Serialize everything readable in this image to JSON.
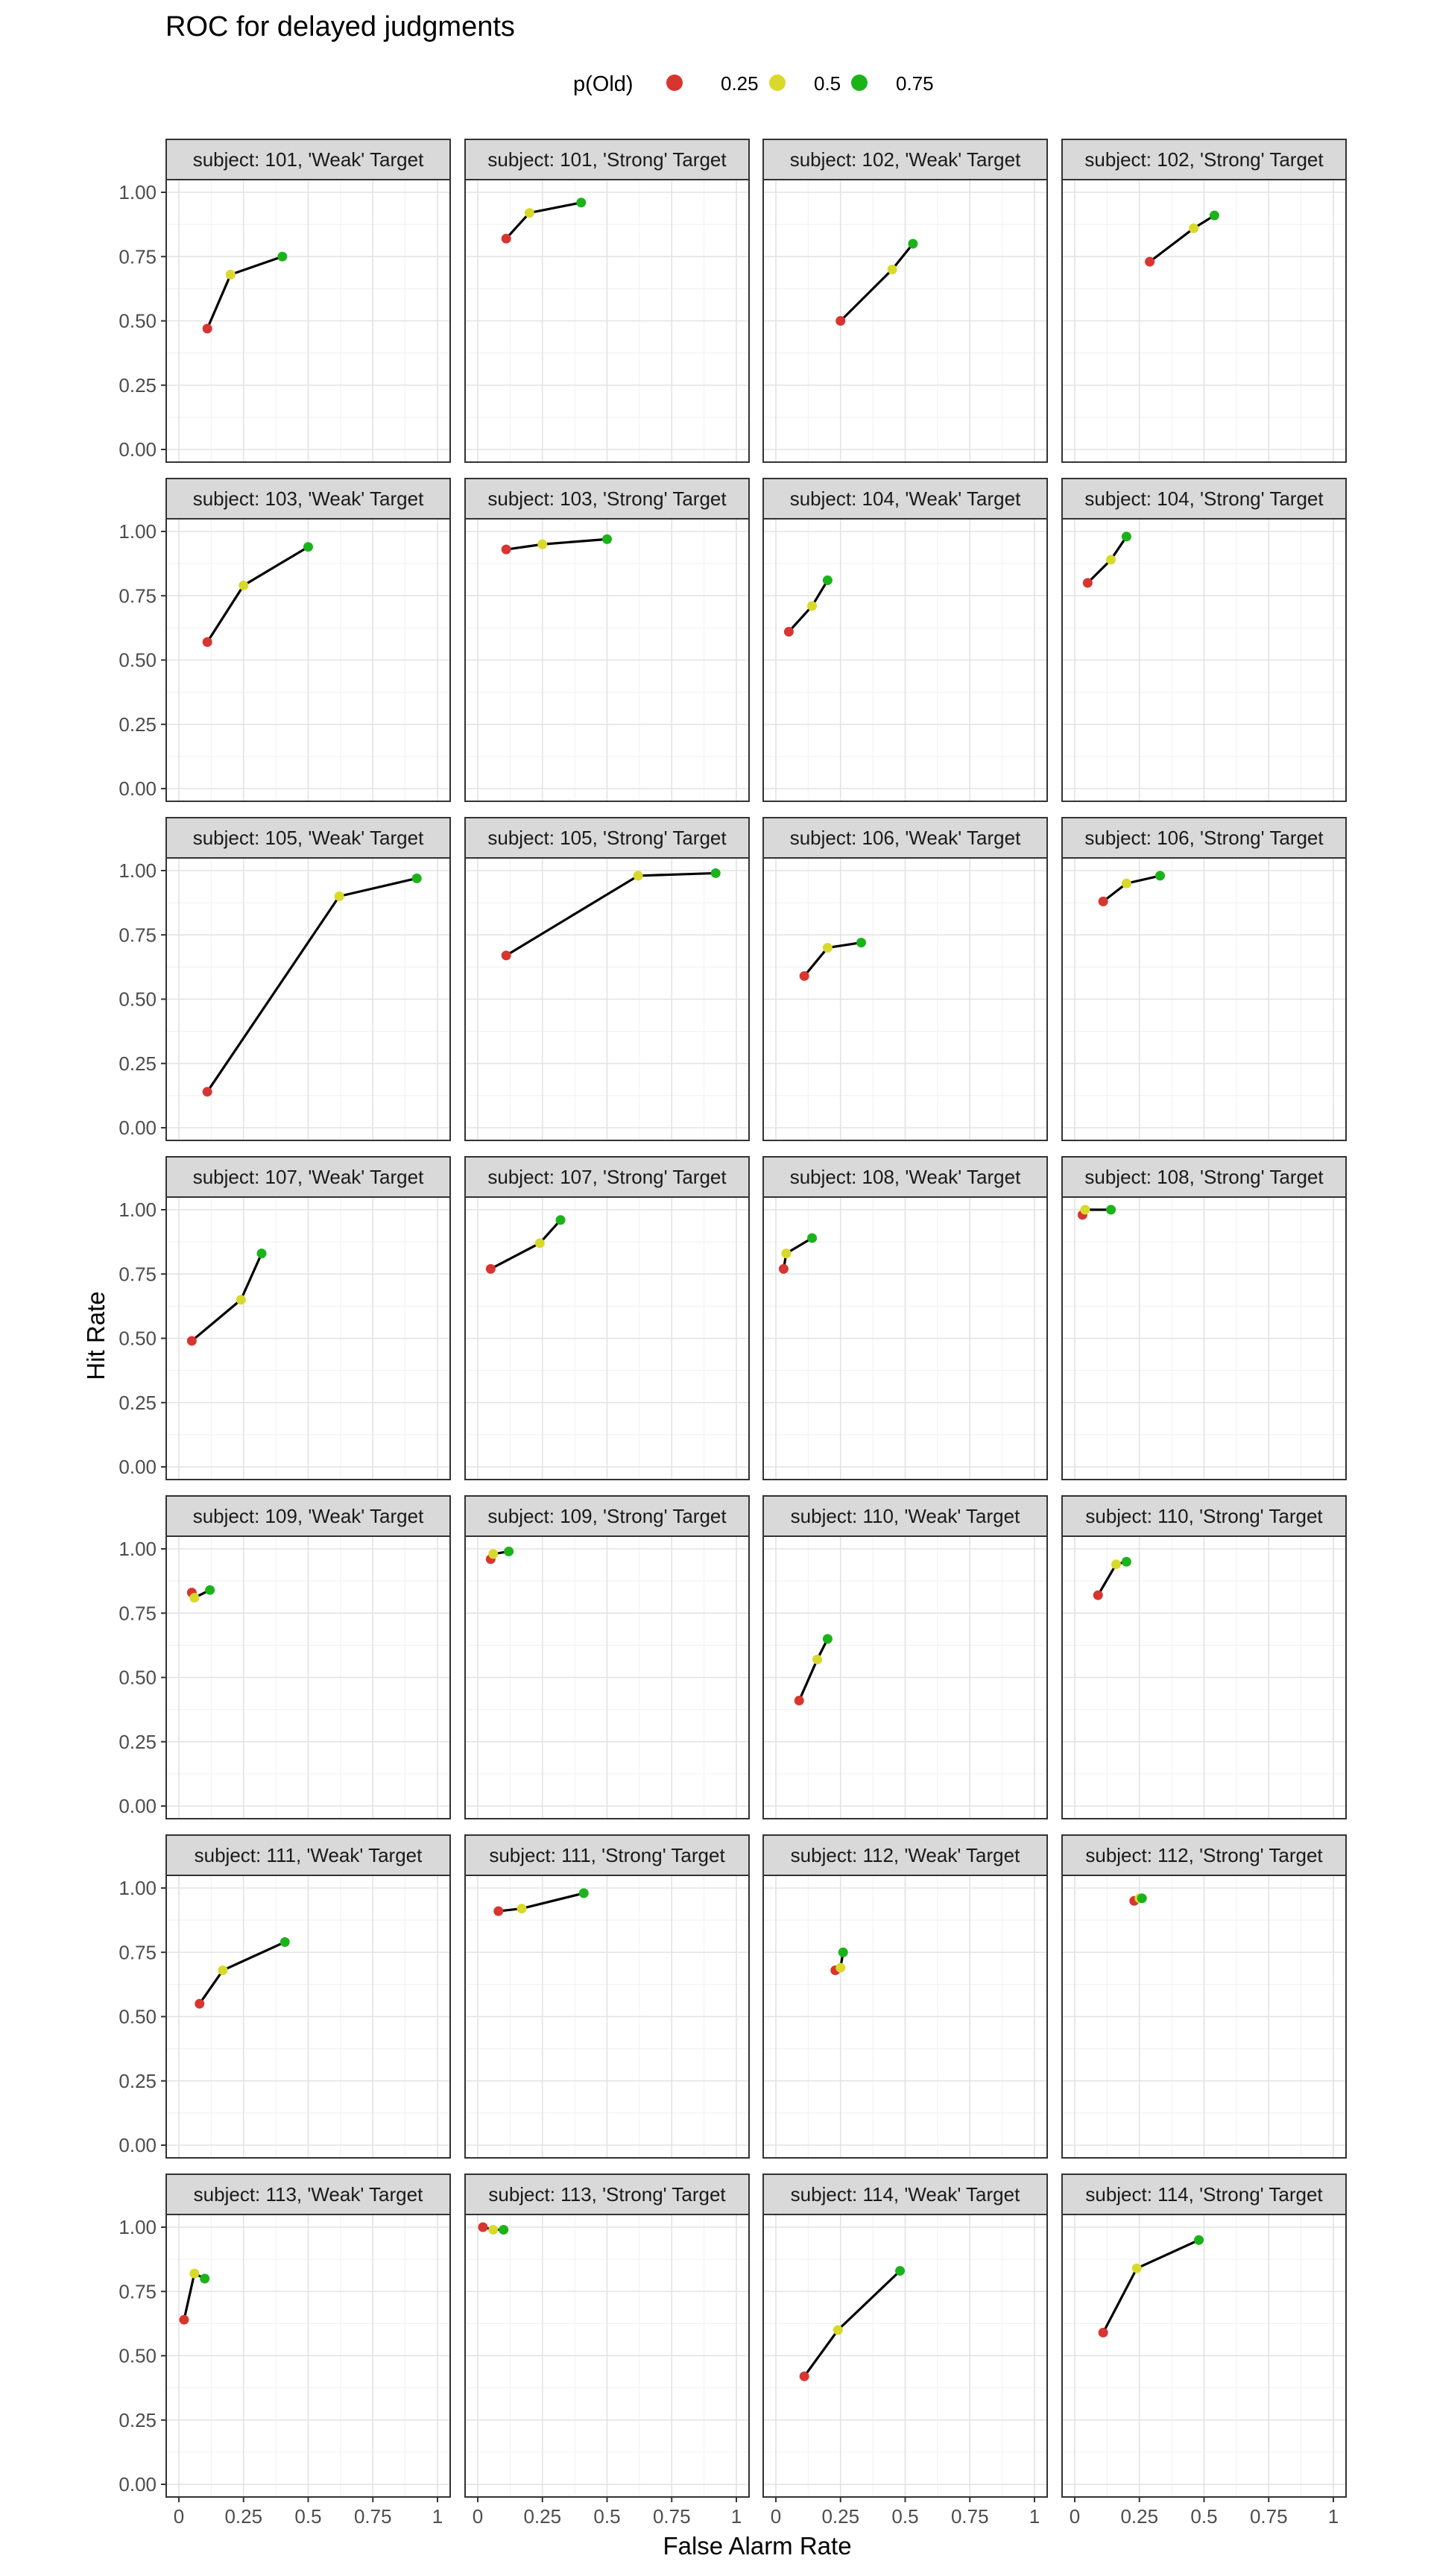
{
  "chart_data": {
    "type": "line",
    "title": "ROC for delayed judgments",
    "xlabel": "False Alarm Rate",
    "ylabel": "Hit Rate",
    "legend": {
      "title": "p(Old)",
      "position": "top",
      "entries": [
        {
          "label": "0.25",
          "color": "#d93530"
        },
        {
          "label": "0.5",
          "color": "#d9d92b"
        },
        {
          "label": "0.75",
          "color": "#1ab31a"
        }
      ]
    },
    "xlim": [
      0,
      1
    ],
    "ylim": [
      0,
      1
    ],
    "x_ticks": [
      "0",
      "0.25",
      "0.5",
      "0.75",
      "1"
    ],
    "y_ticks": [
      "0.00",
      "0.25",
      "0.50",
      "0.75",
      "1.00"
    ],
    "grid": true,
    "facet_columns": 4,
    "panels": [
      {
        "label": "subject: 101, 'Weak' Target",
        "points": [
          [
            0.11,
            0.47
          ],
          [
            0.2,
            0.68
          ],
          [
            0.4,
            0.75
          ]
        ]
      },
      {
        "label": "subject: 101, 'Strong' Target",
        "points": [
          [
            0.11,
            0.82
          ],
          [
            0.2,
            0.92
          ],
          [
            0.4,
            0.96
          ]
        ]
      },
      {
        "label": "subject: 102, 'Weak' Target",
        "points": [
          [
            0.25,
            0.5
          ],
          [
            0.45,
            0.7
          ],
          [
            0.53,
            0.8
          ]
        ]
      },
      {
        "label": "subject: 102, 'Strong' Target",
        "points": [
          [
            0.29,
            0.73
          ],
          [
            0.46,
            0.86
          ],
          [
            0.54,
            0.91
          ]
        ]
      },
      {
        "label": "subject: 103, 'Weak' Target",
        "points": [
          [
            0.11,
            0.57
          ],
          [
            0.25,
            0.79
          ],
          [
            0.5,
            0.94
          ]
        ]
      },
      {
        "label": "subject: 103, 'Strong' Target",
        "points": [
          [
            0.11,
            0.93
          ],
          [
            0.25,
            0.95
          ],
          [
            0.5,
            0.97
          ]
        ]
      },
      {
        "label": "subject: 104, 'Weak' Target",
        "points": [
          [
            0.05,
            0.61
          ],
          [
            0.14,
            0.71
          ],
          [
            0.2,
            0.81
          ]
        ]
      },
      {
        "label": "subject: 104, 'Strong' Target",
        "points": [
          [
            0.05,
            0.8
          ],
          [
            0.14,
            0.89
          ],
          [
            0.2,
            0.98
          ]
        ]
      },
      {
        "label": "subject: 105, 'Weak' Target",
        "points": [
          [
            0.11,
            0.14
          ],
          [
            0.62,
            0.9
          ],
          [
            0.92,
            0.97
          ]
        ]
      },
      {
        "label": "subject: 105, 'Strong' Target",
        "points": [
          [
            0.11,
            0.67
          ],
          [
            0.62,
            0.98
          ],
          [
            0.92,
            0.99
          ]
        ]
      },
      {
        "label": "subject: 106, 'Weak' Target",
        "points": [
          [
            0.11,
            0.59
          ],
          [
            0.2,
            0.7
          ],
          [
            0.33,
            0.72
          ]
        ]
      },
      {
        "label": "subject: 106, 'Strong' Target",
        "points": [
          [
            0.11,
            0.88
          ],
          [
            0.2,
            0.95
          ],
          [
            0.33,
            0.98
          ]
        ]
      },
      {
        "label": "subject: 107, 'Weak' Target",
        "points": [
          [
            0.05,
            0.49
          ],
          [
            0.24,
            0.65
          ],
          [
            0.32,
            0.83
          ]
        ]
      },
      {
        "label": "subject: 107, 'Strong' Target",
        "points": [
          [
            0.05,
            0.77
          ],
          [
            0.24,
            0.87
          ],
          [
            0.32,
            0.96
          ]
        ]
      },
      {
        "label": "subject: 108, 'Weak' Target",
        "points": [
          [
            0.03,
            0.77
          ],
          [
            0.04,
            0.83
          ],
          [
            0.14,
            0.89
          ]
        ]
      },
      {
        "label": "subject: 108, 'Strong' Target",
        "points": [
          [
            0.03,
            0.98
          ],
          [
            0.04,
            1.0
          ],
          [
            0.14,
            1.0
          ]
        ]
      },
      {
        "label": "subject: 109, 'Weak' Target",
        "points": [
          [
            0.05,
            0.83
          ],
          [
            0.06,
            0.81
          ],
          [
            0.12,
            0.84
          ]
        ]
      },
      {
        "label": "subject: 109, 'Strong' Target",
        "points": [
          [
            0.05,
            0.96
          ],
          [
            0.06,
            0.98
          ],
          [
            0.12,
            0.99
          ]
        ]
      },
      {
        "label": "subject: 110, 'Weak' Target",
        "points": [
          [
            0.09,
            0.41
          ],
          [
            0.16,
            0.57
          ],
          [
            0.2,
            0.65
          ]
        ]
      },
      {
        "label": "subject: 110, 'Strong' Target",
        "points": [
          [
            0.09,
            0.82
          ],
          [
            0.16,
            0.94
          ],
          [
            0.2,
            0.95
          ]
        ]
      },
      {
        "label": "subject: 111, 'Weak' Target",
        "points": [
          [
            0.08,
            0.55
          ],
          [
            0.17,
            0.68
          ],
          [
            0.41,
            0.79
          ]
        ]
      },
      {
        "label": "subject: 111, 'Strong' Target",
        "points": [
          [
            0.08,
            0.91
          ],
          [
            0.17,
            0.92
          ],
          [
            0.41,
            0.98
          ]
        ]
      },
      {
        "label": "subject: 112, 'Weak' Target",
        "points": [
          [
            0.23,
            0.68
          ],
          [
            0.25,
            0.69
          ],
          [
            0.26,
            0.75
          ]
        ]
      },
      {
        "label": "subject: 112, 'Strong' Target",
        "points": [
          [
            0.23,
            0.95
          ],
          [
            0.25,
            0.96
          ],
          [
            0.26,
            0.96
          ]
        ]
      },
      {
        "label": "subject: 113, 'Weak' Target",
        "points": [
          [
            0.02,
            0.64
          ],
          [
            0.06,
            0.82
          ],
          [
            0.1,
            0.8
          ]
        ]
      },
      {
        "label": "subject: 113, 'Strong' Target",
        "points": [
          [
            0.02,
            1.0
          ],
          [
            0.06,
            0.99
          ],
          [
            0.1,
            0.99
          ]
        ]
      },
      {
        "label": "subject: 114, 'Weak' Target",
        "points": [
          [
            0.11,
            0.42
          ],
          [
            0.24,
            0.6
          ],
          [
            0.48,
            0.83
          ]
        ]
      },
      {
        "label": "subject: 114, 'Strong' Target",
        "points": [
          [
            0.11,
            0.59
          ],
          [
            0.24,
            0.84
          ],
          [
            0.48,
            0.95
          ]
        ]
      }
    ]
  }
}
